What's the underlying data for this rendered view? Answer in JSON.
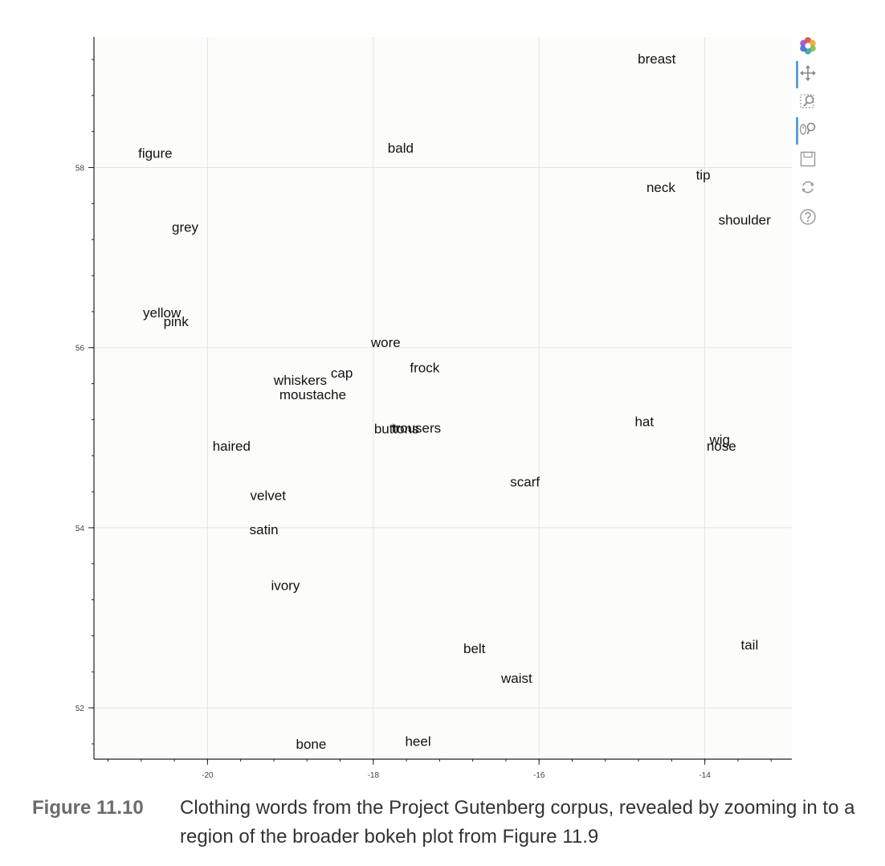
{
  "toolbar": {
    "tools": [
      "bokeh-logo-icon",
      "pan-icon",
      "box-zoom-icon",
      "wheel-zoom-icon",
      "save-icon",
      "reset-icon",
      "help-icon"
    ]
  },
  "caption": {
    "number": "Figure 11.10",
    "text": "Clothing words from the Project Gutenberg corpus, revealed by zooming in to a region of the broader bokeh plot from Figure 11.9"
  },
  "chart_data": {
    "type": "scatter",
    "title": "",
    "xlabel": "",
    "ylabel": "",
    "xlim": [
      -21.37,
      -12.95
    ],
    "ylim": [
      51.43,
      59.45
    ],
    "x_ticks": [
      -20,
      -18,
      -16,
      -14
    ],
    "y_ticks": [
      52,
      54,
      56,
      58
    ],
    "x_tick_labels": [
      "-20",
      "-18",
      "-16",
      "-14"
    ],
    "y_tick_labels": [
      "52",
      "54",
      "56",
      "58"
    ],
    "grid": true,
    "points": [
      {
        "label": "breast",
        "x": -14.58,
        "y": 59.21
      },
      {
        "label": "figure",
        "x": -20.63,
        "y": 58.16
      },
      {
        "label": "bald",
        "x": -17.67,
        "y": 58.22
      },
      {
        "label": "tip",
        "x": -14.02,
        "y": 57.92
      },
      {
        "label": "neck",
        "x": -14.53,
        "y": 57.78
      },
      {
        "label": "grey",
        "x": -20.27,
        "y": 57.34
      },
      {
        "label": "shoulder",
        "x": -13.52,
        "y": 57.42
      },
      {
        "label": "yellow",
        "x": -20.55,
        "y": 56.39
      },
      {
        "label": "pink",
        "x": -20.38,
        "y": 56.29
      },
      {
        "label": "wore",
        "x": -17.85,
        "y": 56.06
      },
      {
        "label": "frock",
        "x": -17.38,
        "y": 55.78
      },
      {
        "label": "cap",
        "x": -18.38,
        "y": 55.72
      },
      {
        "label": "whiskers",
        "x": -18.88,
        "y": 55.64
      },
      {
        "label": "moustache",
        "x": -18.73,
        "y": 55.48
      },
      {
        "label": "buttons",
        "x": -17.72,
        "y": 55.1
      },
      {
        "label": "trousers",
        "x": -17.48,
        "y": 55.11
      },
      {
        "label": "hat",
        "x": -14.73,
        "y": 55.18
      },
      {
        "label": "wig",
        "x": -13.82,
        "y": 54.98
      },
      {
        "label": "nose",
        "x": -13.8,
        "y": 54.91
      },
      {
        "label": "haired",
        "x": -19.71,
        "y": 54.91
      },
      {
        "label": "scarf",
        "x": -16.17,
        "y": 54.51
      },
      {
        "label": "velvet",
        "x": -19.27,
        "y": 54.36
      },
      {
        "label": "satin",
        "x": -19.32,
        "y": 53.98
      },
      {
        "label": "ivory",
        "x": -19.06,
        "y": 53.36
      },
      {
        "label": "belt",
        "x": -16.78,
        "y": 52.66
      },
      {
        "label": "tail",
        "x": -13.46,
        "y": 52.7
      },
      {
        "label": "waist",
        "x": -16.27,
        "y": 52.33
      },
      {
        "label": "bone",
        "x": -18.75,
        "y": 51.6
      },
      {
        "label": "heel",
        "x": -17.46,
        "y": 51.63
      }
    ]
  }
}
